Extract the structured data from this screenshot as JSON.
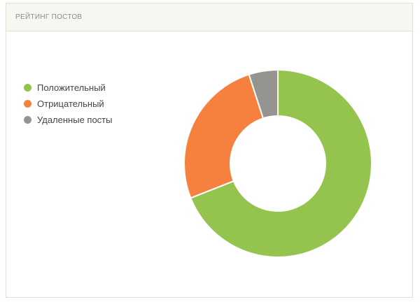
{
  "panel": {
    "title": "РЕЙТИНГ ПОСТОВ"
  },
  "chart_data": {
    "type": "pie",
    "style": "donut",
    "categories": [
      "Положительный",
      "Отрицательный",
      "Удаленные посты"
    ],
    "values": [
      69,
      26,
      5
    ],
    "colors": [
      "#94c34e",
      "#f6813f",
      "#969491"
    ],
    "legend": "left",
    "title": ""
  }
}
